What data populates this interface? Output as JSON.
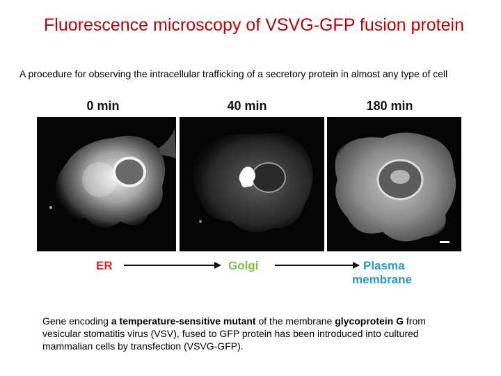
{
  "slide": {
    "title": "Fluorescence microscopy of VSVG-GFP fusion protein",
    "subtitle": "A procedure for observing the intracellular trafficking of a secretory protein in almost any type of cell"
  },
  "figure": {
    "times": [
      "0 min",
      "40 min",
      "180 min"
    ],
    "stages": {
      "er": "ER",
      "golgi": "Golgi",
      "plasma_line1": "Plasma",
      "plasma_line2": "membrane"
    },
    "colors": {
      "er": "#d9262b",
      "golgi": "#7cc242",
      "plasma": "#1f9ad6"
    }
  },
  "body": {
    "p1": "Gene encoding ",
    "b1": "a temperature-sensitive mutant",
    "p2": " of the membrane ",
    "b2": "glycoprotein G",
    "p3": " from vesicular stomatitis virus (VSV), fused to GFP protein has been introduced into cultured mammalian cells by transfection (VSVG-GFP)."
  }
}
